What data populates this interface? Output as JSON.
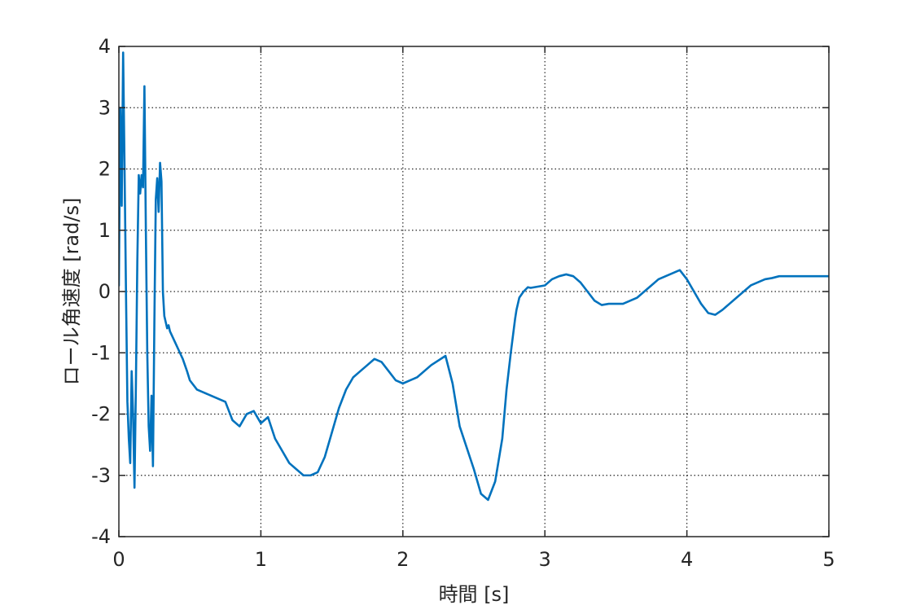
{
  "chart_data": {
    "type": "line",
    "title": "",
    "xlabel": "時間 [s]",
    "ylabel": "ロール角速度 [rad/s]",
    "xlim": [
      0,
      5
    ],
    "ylim": [
      -4,
      4
    ],
    "x_ticks": [
      0,
      1,
      2,
      3,
      4,
      5
    ],
    "y_ticks": [
      -4,
      -3,
      -2,
      -1,
      0,
      1,
      2,
      3,
      4
    ],
    "x_tick_labels": [
      "0",
      "1",
      "2",
      "3",
      "4",
      "5"
    ],
    "y_tick_labels": [
      "-4",
      "-3",
      "-2",
      "-1",
      "0",
      "1",
      "2",
      "3",
      "4"
    ],
    "grid": true,
    "grid_style": "dotted",
    "colors": {
      "series": "#0072BD",
      "axis": "#262626",
      "grid": "#262626",
      "background": "#ffffff"
    },
    "series": [
      {
        "x": [
          0.0,
          0.01,
          0.02,
          0.03,
          0.04,
          0.05,
          0.06,
          0.07,
          0.08,
          0.09,
          0.1,
          0.11,
          0.12,
          0.13,
          0.14,
          0.15,
          0.16,
          0.17,
          0.18,
          0.19,
          0.2,
          0.21,
          0.22,
          0.23,
          0.24,
          0.25,
          0.26,
          0.27,
          0.28,
          0.29,
          0.3,
          0.31,
          0.32,
          0.33,
          0.34,
          0.35,
          0.36,
          0.37,
          0.38,
          0.39,
          0.4,
          0.42,
          0.45,
          0.48,
          0.5,
          0.55,
          0.6,
          0.65,
          0.7,
          0.75,
          0.8,
          0.85,
          0.9,
          0.95,
          1.0,
          1.05,
          1.1,
          1.15,
          1.2,
          1.25,
          1.3,
          1.35,
          1.4,
          1.45,
          1.5,
          1.55,
          1.6,
          1.65,
          1.7,
          1.75,
          1.8,
          1.85,
          1.9,
          1.95,
          2.0,
          2.1,
          2.2,
          2.3,
          2.35,
          2.4,
          2.5,
          2.55,
          2.6,
          2.65,
          2.7,
          2.73,
          2.76,
          2.79,
          2.8,
          2.82,
          2.85,
          2.88,
          2.9,
          2.95,
          3.0,
          3.05,
          3.1,
          3.15,
          3.2,
          3.25,
          3.3,
          3.35,
          3.4,
          3.45,
          3.5,
          3.55,
          3.6,
          3.65,
          3.7,
          3.75,
          3.8,
          3.85,
          3.9,
          3.95,
          4.0,
          4.05,
          4.1,
          4.15,
          4.2,
          4.25,
          4.3,
          4.35,
          4.4,
          4.45,
          4.5,
          4.55,
          4.6,
          4.65,
          4.7,
          4.75,
          4.8,
          4.85,
          4.9,
          4.95,
          5.0
        ],
        "y": [
          0.1,
          3.0,
          1.4,
          3.9,
          2.0,
          0.0,
          -1.8,
          -2.4,
          -2.8,
          -1.3,
          -2.0,
          -3.2,
          -1.5,
          0.5,
          1.9,
          1.6,
          1.9,
          1.7,
          3.35,
          1.0,
          -1.0,
          -2.2,
          -2.6,
          -1.7,
          -2.85,
          -0.5,
          1.5,
          1.85,
          1.3,
          2.1,
          1.8,
          0.0,
          -0.4,
          -0.5,
          -0.6,
          -0.55,
          -0.65,
          -0.7,
          -0.75,
          -0.8,
          -0.85,
          -0.95,
          -1.1,
          -1.3,
          -1.45,
          -1.6,
          -1.65,
          -1.7,
          -1.75,
          -1.8,
          -2.1,
          -2.2,
          -2.0,
          -1.95,
          -2.15,
          -2.05,
          -2.4,
          -2.6,
          -2.8,
          -2.9,
          -3.0,
          -3.0,
          -2.95,
          -2.7,
          -2.3,
          -1.9,
          -1.6,
          -1.4,
          -1.3,
          -1.2,
          -1.1,
          -1.15,
          -1.3,
          -1.45,
          -1.5,
          -1.4,
          -1.2,
          -1.05,
          -1.5,
          -2.2,
          -2.9,
          -3.3,
          -3.4,
          -3.1,
          -2.4,
          -1.6,
          -1.0,
          -0.45,
          -0.3,
          -0.1,
          0.0,
          0.07,
          0.06,
          0.08,
          0.1,
          0.2,
          0.25,
          0.28,
          0.25,
          0.15,
          0.0,
          -0.15,
          -0.22,
          -0.2,
          -0.2,
          -0.2,
          -0.15,
          -0.1,
          0.0,
          0.1,
          0.2,
          0.25,
          0.3,
          0.35,
          0.2,
          0.0,
          -0.2,
          -0.35,
          -0.38,
          -0.3,
          -0.2,
          -0.1,
          0.0,
          0.1,
          0.15,
          0.2,
          0.22,
          0.25,
          0.25,
          0.25,
          0.25,
          0.25,
          0.25,
          0.25,
          0.25
        ]
      }
    ]
  }
}
